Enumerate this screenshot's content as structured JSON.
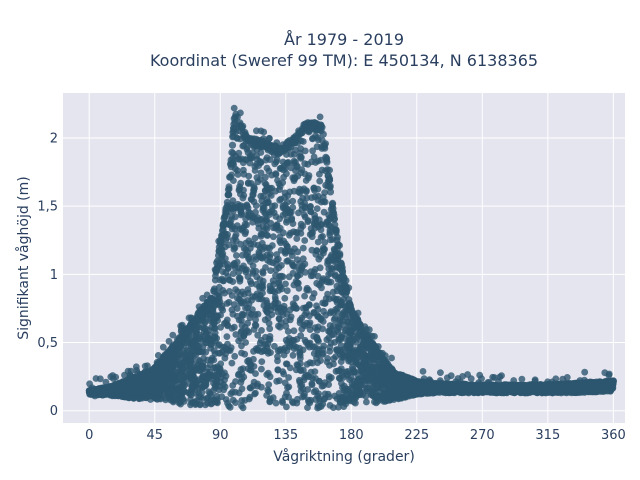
{
  "colors": {
    "plot_background": "#e5e5ef",
    "gridline": "#ffffff",
    "marker": "#2d566f",
    "text": "#2a3f5f"
  },
  "chart_data": {
    "type": "scatter",
    "title_lines": [
      "År 1979 - 2019",
      "Koordinat (Sweref 99 TM): E 450134, N 6138365"
    ],
    "xlabel": "Vågriktning (grader)",
    "ylabel": "Signifikant våghöjd (m)",
    "xlim": [
      -18,
      368
    ],
    "ylim": [
      -0.09,
      2.33
    ],
    "x_ticks": [
      0,
      45,
      90,
      135,
      180,
      225,
      270,
      315,
      360
    ],
    "x_tick_labels": [
      "0",
      "45",
      "90",
      "135",
      "180",
      "225",
      "270",
      "315",
      "360"
    ],
    "y_ticks": [
      0,
      0.5,
      1,
      1.5,
      2
    ],
    "y_tick_labels": [
      "0",
      "0,5",
      "1",
      "1,5",
      "2"
    ],
    "grid": true,
    "marker_opacity": 0.8,
    "envelope": {
      "x": [
        0,
        15,
        30,
        45,
        55,
        65,
        75,
        85,
        90,
        95,
        100,
        105,
        110,
        120,
        130,
        140,
        150,
        160,
        165,
        170,
        175,
        180,
        190,
        200,
        210,
        225,
        240,
        270,
        300,
        330,
        360
      ],
      "y_upper": [
        0.15,
        0.18,
        0.24,
        0.32,
        0.45,
        0.58,
        0.72,
        0.85,
        1.25,
        1.55,
        2.2,
        2.08,
        2.0,
        1.98,
        1.93,
        2.0,
        2.12,
        2.1,
        1.7,
        1.3,
        0.98,
        0.75,
        0.56,
        0.42,
        0.28,
        0.22,
        0.2,
        0.19,
        0.19,
        0.2,
        0.22
      ],
      "y_lower": [
        0.12,
        0.11,
        0.09,
        0.08,
        0.05,
        0.04,
        0.03,
        0.02,
        0.02,
        0.02,
        0.02,
        0.02,
        0.02,
        0.02,
        0.02,
        0.02,
        0.02,
        0.02,
        0.02,
        0.02,
        0.03,
        0.04,
        0.05,
        0.06,
        0.08,
        0.12,
        0.13,
        0.13,
        0.13,
        0.13,
        0.14
      ]
    }
  }
}
